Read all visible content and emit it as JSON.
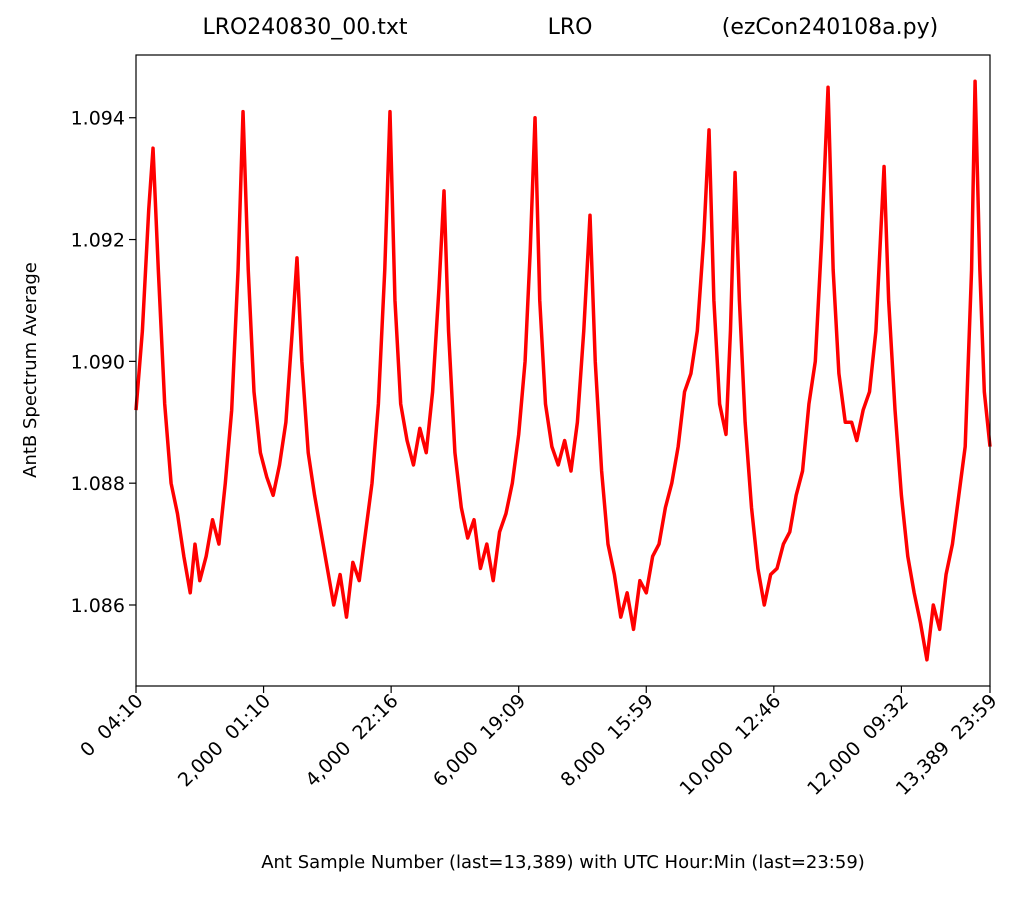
{
  "chart_data": {
    "type": "line",
    "title": [
      "LRO240830_00.txt",
      "LRO",
      "(ezCon240108a.py)"
    ],
    "x_label": "Ant Sample Number (last=13,389) with UTC Hour:Min (last=23:59)",
    "y_label": "AntB Spectrum Average",
    "color": "#ff0000",
    "x": [
      0,
      100,
      200,
      267,
      350,
      450,
      550,
      650,
      750,
      850,
      925,
      1000,
      1100,
      1200,
      1300,
      1400,
      1500,
      1600,
      1678,
      1760,
      1850,
      1950,
      2050,
      2150,
      2250,
      2350,
      2450,
      2524,
      2600,
      2700,
      2800,
      2900,
      3000,
      3100,
      3200,
      3300,
      3400,
      3500,
      3600,
      3700,
      3800,
      3900,
      3982,
      4060,
      4150,
      4250,
      4350,
      4450,
      4550,
      4650,
      4750,
      4829,
      4900,
      5000,
      5100,
      5200,
      5300,
      5400,
      5500,
      5600,
      5700,
      5800,
      5900,
      6000,
      6100,
      6180,
      6256,
      6330,
      6420,
      6520,
      6620,
      6720,
      6820,
      6920,
      7020,
      7118,
      7200,
      7300,
      7400,
      7500,
      7600,
      7700,
      7800,
      7900,
      8000,
      8100,
      8200,
      8300,
      8400,
      8500,
      8600,
      8700,
      8800,
      8900,
      8984,
      9060,
      9150,
      9250,
      9320,
      9392,
      9460,
      9550,
      9650,
      9750,
      9850,
      9950,
      10050,
      10150,
      10250,
      10350,
      10450,
      10550,
      10650,
      10750,
      10850,
      10930,
      11020,
      11120,
      11220,
      11300,
      11400,
      11500,
      11600,
      11728,
      11800,
      11900,
      12000,
      12100,
      12200,
      12300,
      12400,
      12500,
      12600,
      12700,
      12800,
      12900,
      13000,
      13100,
      13155,
      13230,
      13300,
      13389
    ],
    "values": [
      1.0892,
      1.0905,
      1.0925,
      1.0935,
      1.0915,
      1.0893,
      1.088,
      1.0875,
      1.0868,
      1.0862,
      1.087,
      1.0864,
      1.0868,
      1.0874,
      1.087,
      1.088,
      1.0892,
      1.0915,
      1.0941,
      1.0915,
      1.0895,
      1.0885,
      1.0881,
      1.0878,
      1.0883,
      1.089,
      1.0905,
      1.0917,
      1.09,
      1.0885,
      1.0878,
      1.0872,
      1.0866,
      1.086,
      1.0865,
      1.0858,
      1.0867,
      1.0864,
      1.0872,
      1.088,
      1.0893,
      1.0915,
      1.0941,
      1.091,
      1.0893,
      1.0887,
      1.0883,
      1.0889,
      1.0885,
      1.0895,
      1.0912,
      1.0928,
      1.0905,
      1.0885,
      1.0876,
      1.0871,
      1.0874,
      1.0866,
      1.087,
      1.0864,
      1.0872,
      1.0875,
      1.088,
      1.0888,
      1.09,
      1.0918,
      1.094,
      1.091,
      1.0893,
      1.0886,
      1.0883,
      1.0887,
      1.0882,
      1.089,
      1.0905,
      1.0924,
      1.09,
      1.0882,
      1.087,
      1.0865,
      1.0858,
      1.0862,
      1.0856,
      1.0864,
      1.0862,
      1.0868,
      1.087,
      1.0876,
      1.088,
      1.0886,
      1.0895,
      1.0898,
      1.0905,
      1.092,
      1.0938,
      1.091,
      1.0893,
      1.0888,
      1.0905,
      1.0931,
      1.091,
      1.089,
      1.0876,
      1.0866,
      1.086,
      1.0865,
      1.0866,
      1.087,
      1.0872,
      1.0878,
      1.0882,
      1.0893,
      1.09,
      1.092,
      1.0945,
      1.0915,
      1.0898,
      1.089,
      1.089,
      1.0887,
      1.0892,
      1.0895,
      1.0905,
      1.0932,
      1.091,
      1.0892,
      1.0878,
      1.0868,
      1.0862,
      1.0857,
      1.0851,
      1.086,
      1.0856,
      1.0865,
      1.087,
      1.0878,
      1.0886,
      1.0915,
      1.0946,
      1.0915,
      1.0895,
      1.0886
    ],
    "xlim": [
      0,
      13389
    ],
    "ylim": [
      1.08467,
      1.09503
    ],
    "xticks": [
      {
        "value": 0,
        "label": "0  04:10"
      },
      {
        "value": 2000,
        "label": "2,000  01:10"
      },
      {
        "value": 4000,
        "label": "4,000  22:16"
      },
      {
        "value": 6000,
        "label": "6,000  19:09"
      },
      {
        "value": 8000,
        "label": "8,000  15:59"
      },
      {
        "value": 10000,
        "label": "10,000  12:46"
      },
      {
        "value": 12000,
        "label": "12,000  09:32"
      },
      {
        "value": 13389,
        "label": "13,389  23:59"
      }
    ],
    "yticks": [
      1.086,
      1.088,
      {
        "value": 1.09,
        "label": "1.090"
      },
      1.092,
      1.094
    ]
  }
}
